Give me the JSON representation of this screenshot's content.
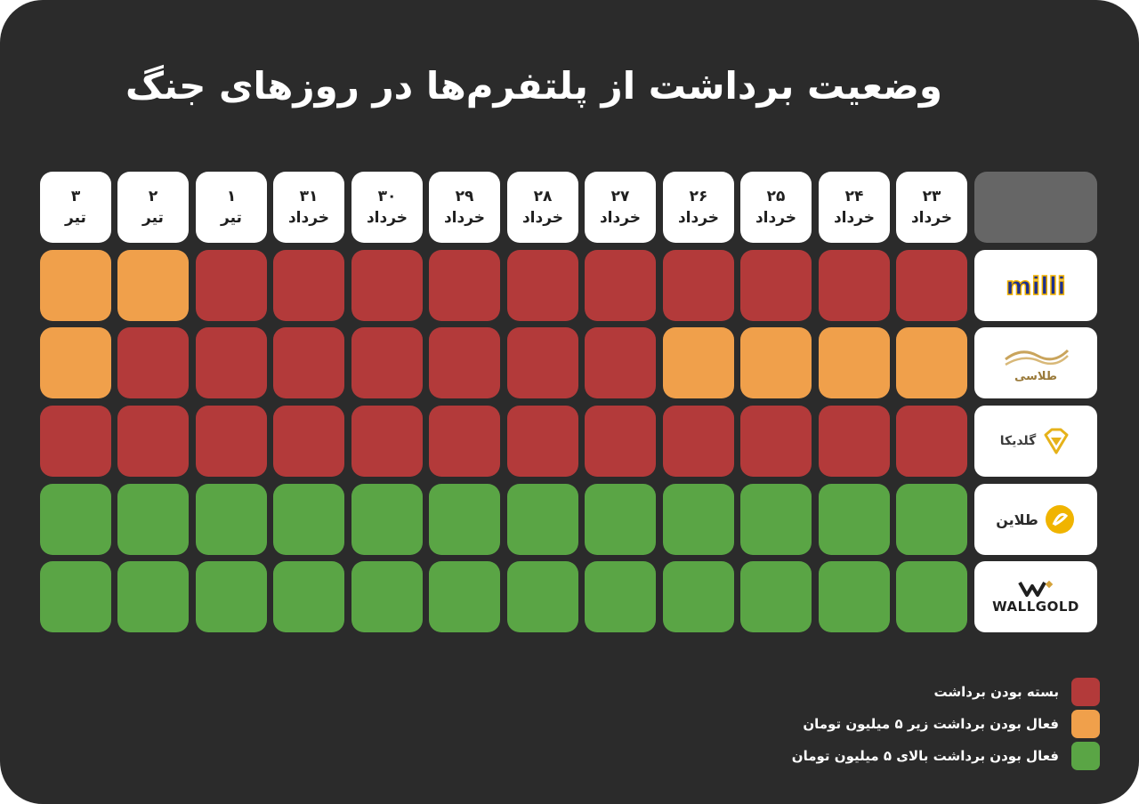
{
  "title": "وضعیت برداشت از پلتفرم‌ها در روزهای جنگ",
  "colors": {
    "closed": "#b33a3a",
    "under5": "#f0a04b",
    "over5": "#5aa545"
  },
  "chart_data": {
    "type": "table",
    "columns": [
      {
        "day": "۲۳",
        "month": "خرداد"
      },
      {
        "day": "۲۴",
        "month": "خرداد"
      },
      {
        "day": "۲۵",
        "month": "خرداد"
      },
      {
        "day": "۲۶",
        "month": "خرداد"
      },
      {
        "day": "۲۷",
        "month": "خرداد"
      },
      {
        "day": "۲۸",
        "month": "خرداد"
      },
      {
        "day": "۲۹",
        "month": "خرداد"
      },
      {
        "day": "۳۰",
        "month": "خرداد"
      },
      {
        "day": "۳۱",
        "month": "خرداد"
      },
      {
        "day": "۱",
        "month": "تیر"
      },
      {
        "day": "۲",
        "month": "تیر"
      },
      {
        "day": "۳",
        "month": "تیر"
      }
    ],
    "rows": [
      {
        "platform": "milli",
        "status": [
          "closed",
          "closed",
          "closed",
          "closed",
          "closed",
          "closed",
          "closed",
          "closed",
          "closed",
          "closed",
          "under5",
          "under5"
        ]
      },
      {
        "platform": "طلاسی",
        "status": [
          "under5",
          "under5",
          "under5",
          "under5",
          "closed",
          "closed",
          "closed",
          "closed",
          "closed",
          "closed",
          "closed",
          "under5"
        ]
      },
      {
        "platform": "گلدیکا",
        "status": [
          "closed",
          "closed",
          "closed",
          "closed",
          "closed",
          "closed",
          "closed",
          "closed",
          "closed",
          "closed",
          "closed",
          "closed"
        ]
      },
      {
        "platform": "طلاین",
        "status": [
          "over5",
          "over5",
          "over5",
          "over5",
          "over5",
          "over5",
          "over5",
          "over5",
          "over5",
          "over5",
          "over5",
          "over5"
        ]
      },
      {
        "platform": "WALLGOLD",
        "status": [
          "over5",
          "over5",
          "over5",
          "over5",
          "over5",
          "over5",
          "over5",
          "over5",
          "over5",
          "over5",
          "over5",
          "over5"
        ]
      }
    ],
    "legend": [
      {
        "key": "closed",
        "label": "بسته بودن برداشت"
      },
      {
        "key": "under5",
        "label": "فعال بودن برداشت زیر ۵ میلیون تومان"
      },
      {
        "key": "over5",
        "label": "فعال بودن برداشت بالای ۵ میلیون تومان"
      }
    ]
  }
}
